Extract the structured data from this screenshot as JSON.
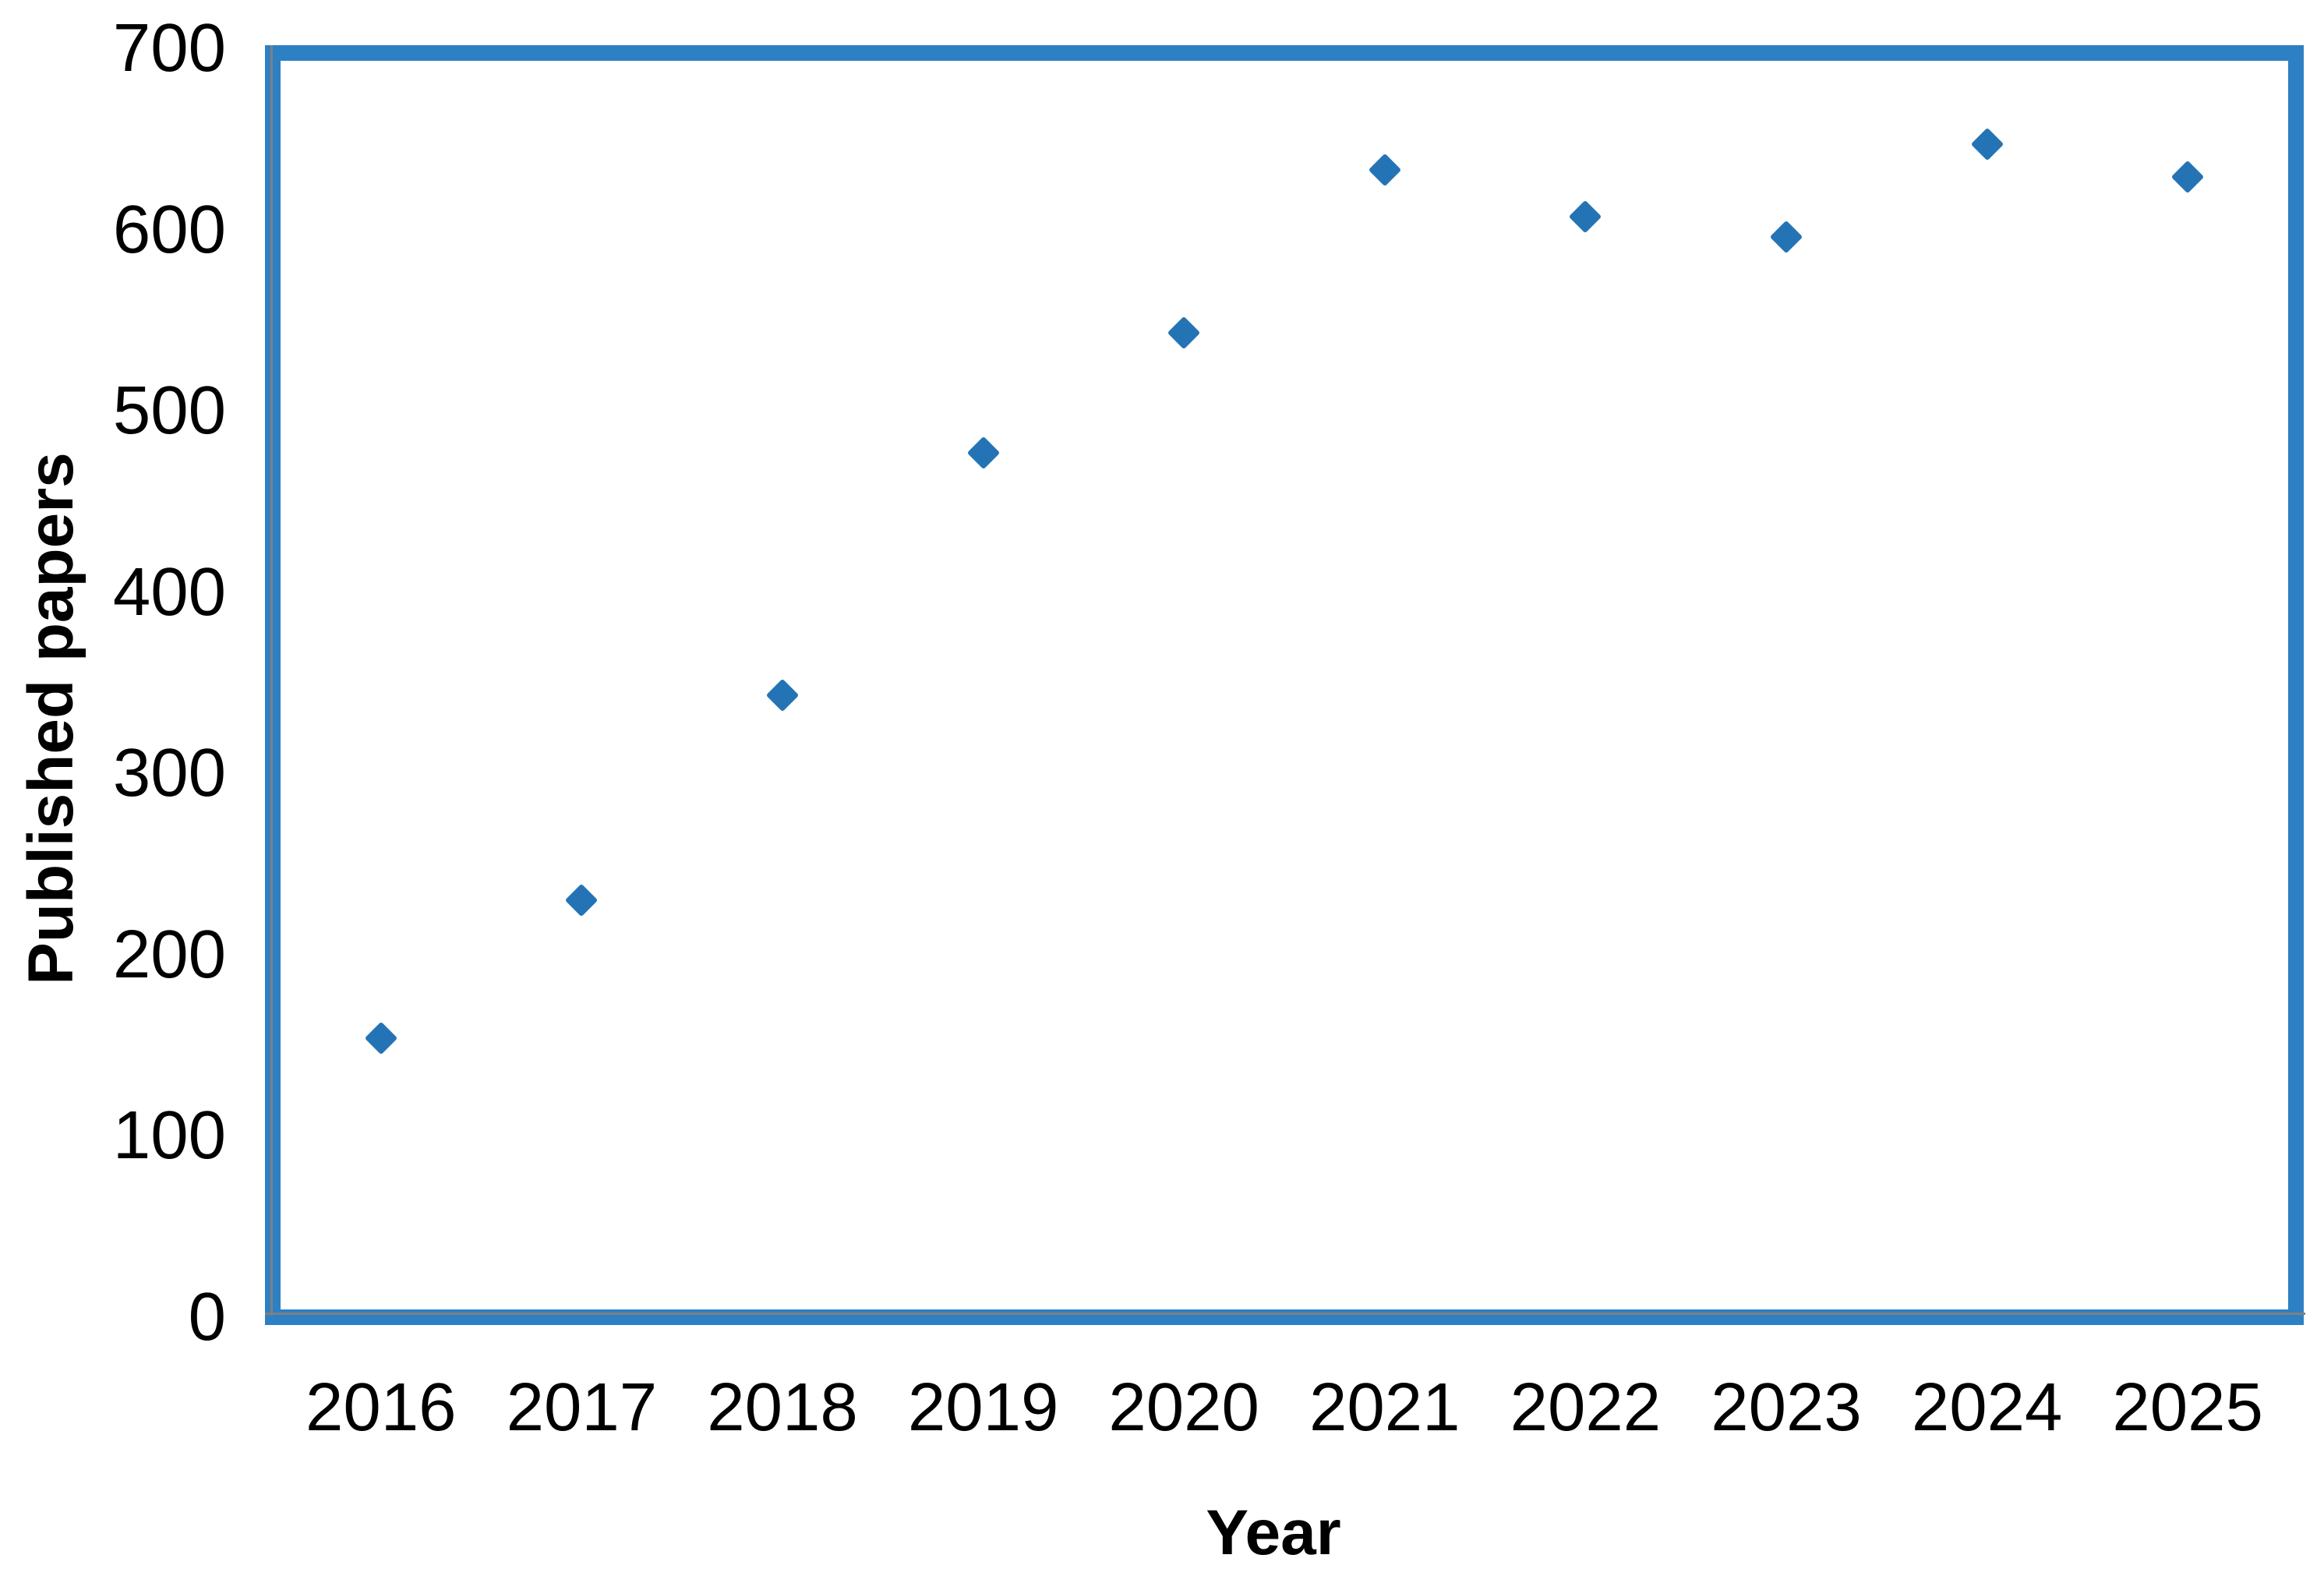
{
  "chart_data": {
    "type": "scatter",
    "title": "",
    "xlabel": "Year",
    "ylabel": "Published papers",
    "categories": [
      "2016",
      "2017",
      "2018",
      "2019",
      "2020",
      "2021",
      "2022",
      "2023",
      "2024",
      "2025"
    ],
    "series": [
      {
        "name": "Published papers",
        "values": [
          154,
          230,
          343,
          477,
          543,
          633,
          607,
          596,
          647,
          629
        ]
      }
    ],
    "marker_shape": "diamond",
    "marker_color": "#2474b5",
    "plot_border_color": "#2c80c3",
    "axis_line_color": "#808080",
    "ylim": [
      0,
      700
    ],
    "yticks": [
      0,
      100,
      200,
      300,
      400,
      500,
      600,
      700
    ],
    "grid": false,
    "legend_position": "none",
    "background_color": "#ffffff"
  }
}
